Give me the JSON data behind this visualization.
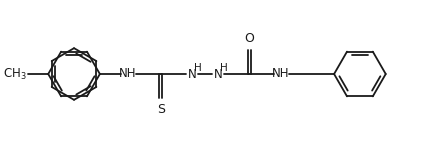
{
  "bg_color": "#ffffff",
  "line_color": "#1a1a1a",
  "line_width": 1.3,
  "font_size": 8.5,
  "r": 0.28,
  "xlim": [
    0.0,
    4.4
  ],
  "ylim": [
    -0.15,
    1.05
  ]
}
